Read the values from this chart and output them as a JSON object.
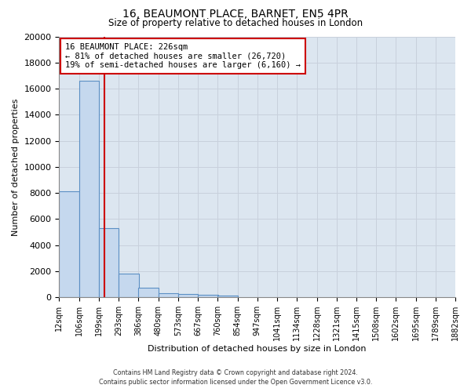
{
  "title": "16, BEAUMONT PLACE, BARNET, EN5 4PR",
  "subtitle": "Size of property relative to detached houses in London",
  "xlabel": "Distribution of detached houses by size in London",
  "ylabel": "Number of detached properties",
  "bar_values": [
    8100,
    16600,
    5300,
    1800,
    750,
    300,
    250,
    200,
    150
  ],
  "all_labels": [
    "12sqm",
    "106sqm",
    "199sqm",
    "293sqm",
    "386sqm",
    "480sqm",
    "573sqm",
    "667sqm",
    "760sqm",
    "854sqm",
    "947sqm",
    "1041sqm",
    "1134sqm",
    "1228sqm",
    "1321sqm",
    "1415sqm",
    "1508sqm",
    "1602sqm",
    "1695sqm",
    "1789sqm",
    "1882sqm"
  ],
  "bin_edges": [
    12,
    106,
    199,
    293,
    386,
    480,
    573,
    667,
    760,
    854,
    947,
    1041,
    1134,
    1228,
    1321,
    1415,
    1508,
    1602,
    1695,
    1789,
    1882
  ],
  "bar_color": "#c5d8ee",
  "bar_edge_color": "#5b8fc4",
  "red_line_x": 226,
  "annotation_title": "16 BEAUMONT PLACE: 226sqm",
  "annotation_line1": "← 81% of detached houses are smaller (26,720)",
  "annotation_line2": "19% of semi-detached houses are larger (6,160) →",
  "annotation_box_facecolor": "#ffffff",
  "annotation_box_edgecolor": "#cc0000",
  "ylim": [
    0,
    20000
  ],
  "yticks": [
    0,
    2000,
    4000,
    6000,
    8000,
    10000,
    12000,
    14000,
    16000,
    18000,
    20000
  ],
  "grid_color": "#c8d0dc",
  "plot_bg_color": "#dce6f0",
  "fig_bg_color": "#ffffff",
  "footer_line1": "Contains HM Land Registry data © Crown copyright and database right 2024.",
  "footer_line2": "Contains public sector information licensed under the Open Government Licence v3.0."
}
